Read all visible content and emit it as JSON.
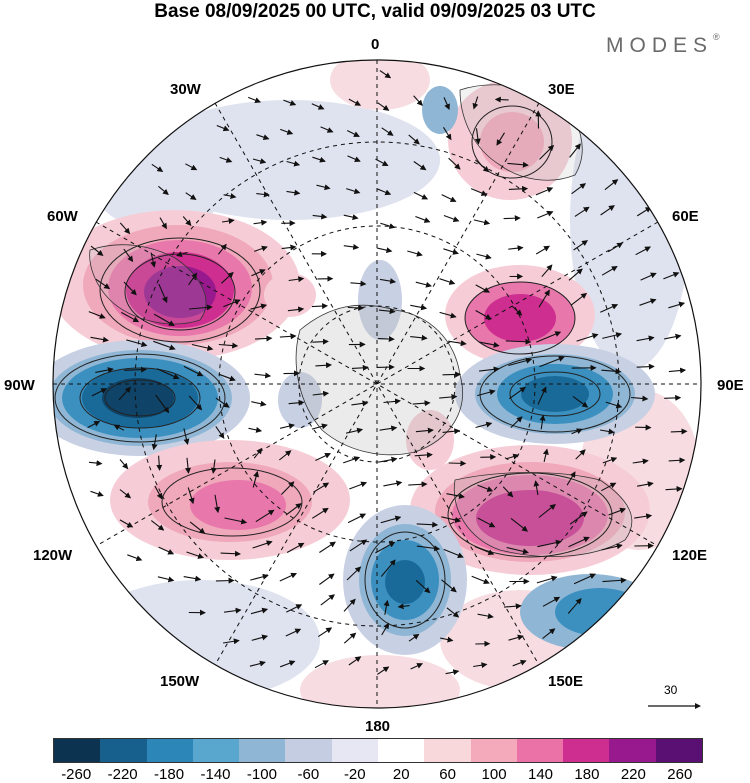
{
  "title": "Base 08/09/2025 00 UTC, valid 09/09/2025 03 UTC",
  "brand": {
    "name": "MODES",
    "mark": "®"
  },
  "meridian_labels": {
    "lon_0": "0",
    "lon_30e": "30E",
    "lon_60e": "60E",
    "lon_90e": "90E",
    "lon_120e": "120E",
    "lon_150e": "150E",
    "lon_180": "180",
    "lon_150w": "150W",
    "lon_120w": "120W",
    "lon_90w": "90W",
    "lon_60w": "60W",
    "lon_30w": "30W"
  },
  "reference_vector": {
    "value": "30"
  },
  "colorbar": {
    "ticks": [
      "-260",
      "-220",
      "-180",
      "-140",
      "-100",
      "-60",
      "-20",
      "20",
      "60",
      "100",
      "140",
      "180",
      "220",
      "260"
    ],
    "colors": [
      "#0c3350",
      "#175f8c",
      "#2d86b8",
      "#59a6cf",
      "#8fb6d4",
      "#c5cde3",
      "#e6e7f2",
      "#ffffff",
      "#f9d8dc",
      "#f4aabb",
      "#ea72a6",
      "#cd2e8f",
      "#98188d",
      "#5a1072"
    ]
  },
  "colors": {
    "negative_strong": "#1a6a99",
    "negative_mid": "#5aa4cc",
    "negative_weak": "#c8d0e4",
    "positive_weak": "#f6cdd6",
    "positive_mid": "#ec7eae",
    "positive_strong": "#a01e8f"
  }
}
